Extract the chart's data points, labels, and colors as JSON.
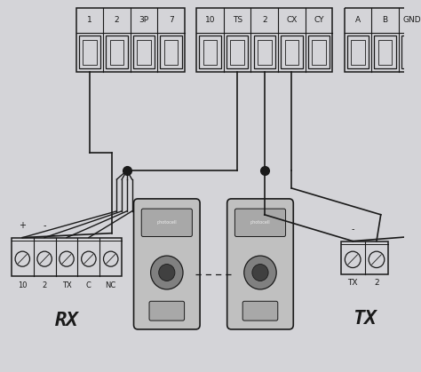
{
  "bg_color": "#d4d4d8",
  "fg_color": "#1a1a1a",
  "panel1_labels": [
    "1",
    "2",
    "3P",
    "7"
  ],
  "panel2_labels": [
    "10",
    "TS",
    "2",
    "CX",
    "CY"
  ],
  "panel3_labels": [
    "A",
    "B",
    "GND"
  ],
  "rx_labels": [
    "10",
    "2",
    "TX",
    "C",
    "NC"
  ],
  "tx_labels": [
    "TX",
    "2"
  ],
  "rx_pm": [
    "+",
    "-"
  ],
  "tx_pm": [
    "-"
  ],
  "rx_text": "RX",
  "tx_text": "TX",
  "sensor_body_color": "#c0c0c0",
  "sensor_lens_color": "#808080",
  "sensor_dark_color": "#404040"
}
